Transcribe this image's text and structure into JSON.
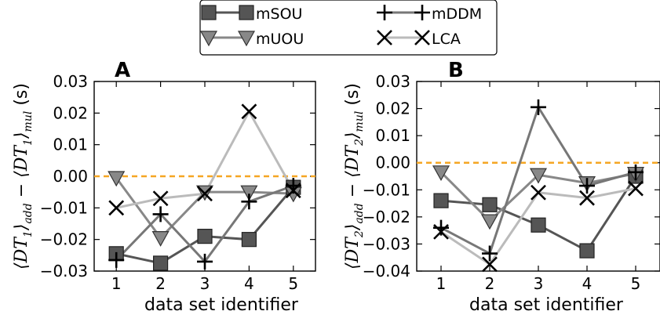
{
  "legend": {
    "entries": [
      "mSOU",
      "mUOU",
      "mDDM",
      "LCA"
    ]
  },
  "series_styles": [
    {
      "name": "mSOU",
      "color": "#555555",
      "marker": "square"
    },
    {
      "name": "mUOU",
      "color": "#888888",
      "marker": "triangle-down"
    },
    {
      "name": "mDDM",
      "color": "#777777",
      "marker": "plus"
    },
    {
      "name": "LCA",
      "color": "#bbbbbb",
      "marker": "x"
    }
  ],
  "zero_line_color": "#f5a623",
  "chart_data": [
    {
      "type": "line",
      "panel": "A",
      "ylabel": {
        "main1": "⟨DT",
        "sub1": "1",
        "main2": "⟩",
        "sub2": "add",
        "main3": " − ⟨DT",
        "sub3": "1",
        "main4": "⟩",
        "sub4": "mul",
        "unit": " (s)"
      },
      "xlabel": "data set identifier",
      "x": [
        1,
        2,
        3,
        4,
        5
      ],
      "xlim": [
        0.5,
        5.5
      ],
      "ylim": [
        -0.03,
        0.03
      ],
      "yticks": [
        -0.03,
        -0.02,
        -0.01,
        0.0,
        0.01,
        0.02,
        0.03
      ],
      "ytick_labels": [
        "−0.03",
        "−0.02",
        "−0.01",
        "0.00",
        "0.01",
        "0.02",
        "0.03"
      ],
      "series": [
        {
          "name": "mSOU",
          "values": [
            -0.0245,
            -0.0275,
            -0.019,
            -0.02,
            -0.0035
          ]
        },
        {
          "name": "mUOU",
          "values": [
            -0.0005,
            -0.0195,
            -0.005,
            -0.005,
            -0.0055
          ]
        },
        {
          "name": "mDDM",
          "values": [
            -0.0265,
            -0.012,
            -0.027,
            -0.008,
            -0.003
          ]
        },
        {
          "name": "LCA",
          "values": [
            -0.01,
            -0.007,
            -0.0055,
            0.0205,
            -0.0045
          ]
        }
      ]
    },
    {
      "type": "line",
      "panel": "B",
      "ylabel": {
        "main1": "⟨DT",
        "sub1": "2",
        "main2": "⟩",
        "sub2": "add",
        "main3": " − ⟨DT",
        "sub3": "2",
        "main4": "⟩",
        "sub4": "mul",
        "unit": " (s)"
      },
      "xlabel": "data set identifier",
      "x": [
        1,
        2,
        3,
        4,
        5
      ],
      "xlim": [
        0.5,
        5.5
      ],
      "ylim": [
        -0.04,
        0.03
      ],
      "yticks": [
        -0.04,
        -0.03,
        -0.02,
        -0.01,
        0.0,
        0.01,
        0.02,
        0.03
      ],
      "ytick_labels": [
        "−0.04",
        "−0.03",
        "−0.02",
        "−0.01",
        "0.00",
        "0.01",
        "0.02",
        "0.03"
      ],
      "series": [
        {
          "name": "mSOU",
          "values": [
            -0.014,
            -0.0155,
            -0.023,
            -0.0325,
            -0.005
          ]
        },
        {
          "name": "mUOU",
          "values": [
            -0.0035,
            -0.0215,
            -0.0045,
            -0.0075,
            -0.004
          ]
        },
        {
          "name": "mDDM",
          "values": [
            -0.024,
            -0.0335,
            0.0205,
            -0.0085,
            -0.0035
          ]
        },
        {
          "name": "LCA",
          "values": [
            -0.0255,
            -0.0375,
            -0.011,
            -0.013,
            -0.0095
          ]
        }
      ]
    }
  ]
}
